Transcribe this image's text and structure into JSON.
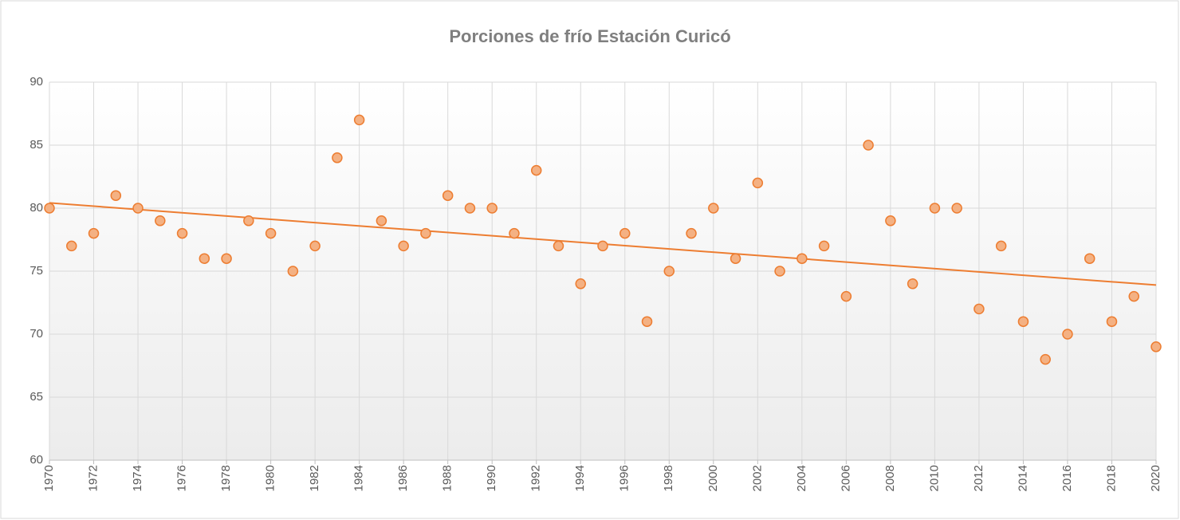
{
  "chart_data": {
    "type": "scatter",
    "title": "Porciones  de frío Estación  Curicó",
    "x": [
      1970,
      1971,
      1972,
      1973,
      1974,
      1975,
      1976,
      1977,
      1978,
      1979,
      1980,
      1981,
      1982,
      1983,
      1984,
      1985,
      1986,
      1987,
      1988,
      1989,
      1990,
      1991,
      1992,
      1993,
      1994,
      1995,
      1996,
      1997,
      1998,
      1999,
      2000,
      2001,
      2002,
      2003,
      2004,
      2005,
      2006,
      2007,
      2008,
      2009,
      2010,
      2011,
      2012,
      2013,
      2014,
      2015,
      2016,
      2017,
      2018,
      2019,
      2020
    ],
    "values": [
      80,
      77,
      78,
      81,
      80,
      79,
      78,
      76,
      76,
      79,
      78,
      75,
      77,
      84,
      87,
      79,
      77,
      78,
      81,
      80,
      80,
      78,
      83,
      77,
      74,
      77,
      78,
      71,
      75,
      78,
      80,
      76,
      82,
      75,
      76,
      77,
      73,
      85,
      79,
      74,
      80,
      80,
      72,
      77,
      71,
      68,
      70,
      76,
      71,
      73,
      69
    ],
    "color": "#ed7d31",
    "marker_fill": "#f4b183",
    "trendline": true,
    "xlim": [
      1970,
      2020
    ],
    "xticks": [
      1970,
      1972,
      1974,
      1976,
      1978,
      1980,
      1982,
      1984,
      1986,
      1988,
      1990,
      1992,
      1994,
      1996,
      1998,
      2000,
      2002,
      2004,
      2006,
      2008,
      2010,
      2012,
      2014,
      2016,
      2018,
      2020
    ],
    "ylim": [
      60,
      90
    ],
    "yticks": [
      60,
      65,
      70,
      75,
      80,
      85,
      90
    ],
    "grid": true
  }
}
